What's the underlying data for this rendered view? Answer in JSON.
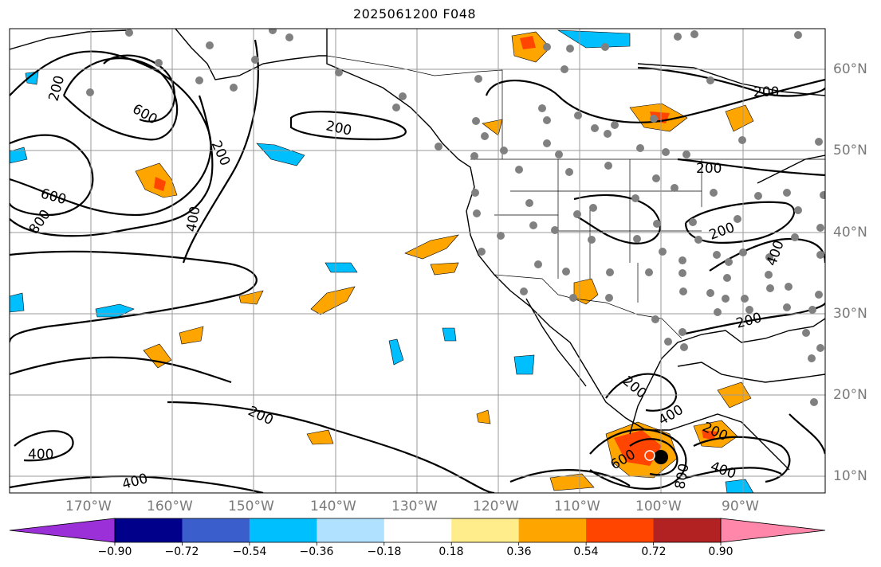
{
  "title": "2025061200 F048",
  "lat_labels": [
    "60°N",
    "50°N",
    "40°N",
    "30°N",
    "20°N",
    "10°N"
  ],
  "lon_labels": [
    "170°W",
    "160°W",
    "150°W",
    "140°W",
    "130°W",
    "120°W",
    "110°W",
    "100°W",
    "90°W"
  ],
  "contour_labels": [
    "200",
    "400",
    "600",
    "800"
  ],
  "colorbar": {
    "ticks": [
      "−0.90",
      "−0.72",
      "−0.54",
      "−0.36",
      "−0.18",
      "0.18",
      "0.36",
      "0.54",
      "0.72",
      "0.90"
    ],
    "colors": [
      "#9b30d9",
      "#00008b",
      "#3a5fcd",
      "#00bfff",
      "#b0e2ff",
      "#ffffff",
      "#ffec8b",
      "#ffa500",
      "#ff4500",
      "#b22222",
      "#ff88aa"
    ]
  }
}
